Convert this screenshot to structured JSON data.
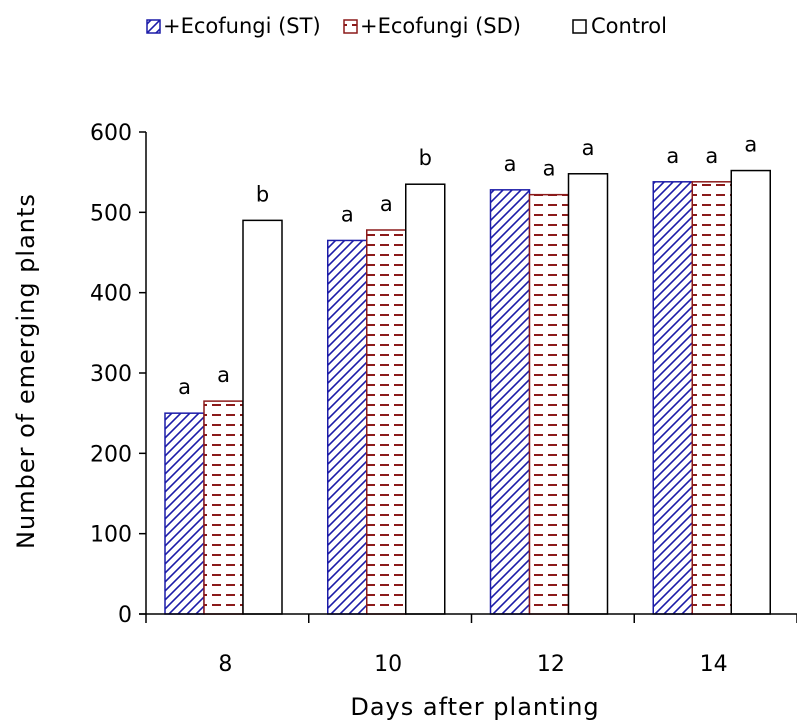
{
  "chart_data": {
    "type": "bar",
    "title": "",
    "xlabel": "Days after planting",
    "ylabel": "Number of emerging plants",
    "categories": [
      "8",
      "10",
      "12",
      "14"
    ],
    "ylim": [
      0,
      600
    ],
    "yticks": [
      "0",
      "100",
      "200",
      "300",
      "400",
      "500",
      "600"
    ],
    "grid": false,
    "legend_position": "top",
    "series": [
      {
        "name": "+Ecofungi (ST)",
        "values": [
          250,
          465,
          528,
          538
        ],
        "labels": [
          "a",
          "a",
          "a",
          "a"
        ],
        "color": "#1c1ca8",
        "pattern": "diagonal-hatch"
      },
      {
        "name": "+Ecofungi (SD)",
        "values": [
          265,
          478,
          522,
          538
        ],
        "labels": [
          "a",
          "a",
          "a",
          "a"
        ],
        "color": "#8b1a1a",
        "pattern": "horizontal-dash"
      },
      {
        "name": "Control",
        "values": [
          490,
          535,
          548,
          552
        ],
        "labels": [
          "b",
          "b",
          "a",
          "a"
        ],
        "color": "#000000",
        "pattern": "none"
      }
    ]
  }
}
